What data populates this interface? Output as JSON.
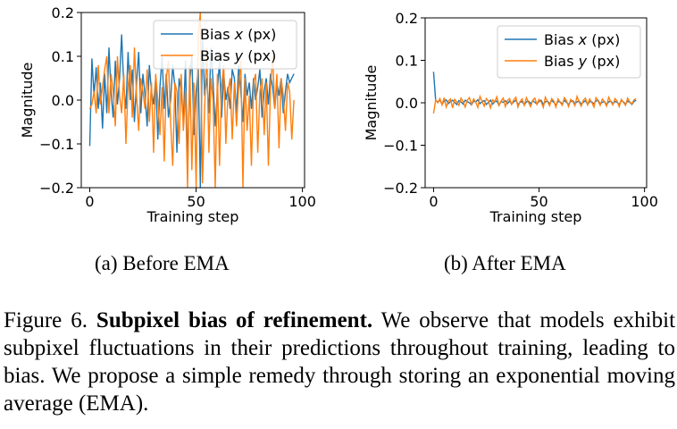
{
  "chart_data": [
    {
      "type": "line",
      "title": "",
      "xlabel": "Training step",
      "ylabel": "Magnitude",
      "xlim": [
        -4,
        101
      ],
      "ylim": [
        -0.2,
        0.2
      ],
      "xticks": [
        0,
        50,
        100
      ],
      "yticks": [
        -0.2,
        -0.1,
        0.0,
        0.1,
        0.2
      ],
      "ytick_labels": [
        "−0.2",
        "−0.1",
        "0.0",
        "0.1",
        "0.2"
      ],
      "legend_position": "upper-right",
      "series": [
        {
          "name": "Bias x (px)",
          "color": "#1f77b4",
          "x": [
            0,
            1,
            2,
            3,
            4,
            5,
            6,
            7,
            8,
            9,
            10,
            11,
            12,
            13,
            14,
            15,
            16,
            17,
            18,
            19,
            20,
            21,
            22,
            23,
            24,
            25,
            26,
            27,
            28,
            29,
            30,
            31,
            32,
            33,
            34,
            35,
            36,
            37,
            38,
            39,
            40,
            41,
            42,
            43,
            44,
            45,
            46,
            47,
            48,
            49,
            50,
            51,
            52,
            53,
            54,
            55,
            56,
            57,
            58,
            59,
            60,
            61,
            62,
            63,
            64,
            65,
            66,
            67,
            68,
            69,
            70,
            71,
            72,
            73,
            74,
            75,
            76,
            77,
            78,
            79,
            80,
            81,
            82,
            83,
            84,
            85,
            86,
            87,
            88,
            89,
            90,
            91,
            92,
            93,
            94,
            95,
            96
          ],
          "y": [
            -0.105,
            0.095,
            0.01,
            0.075,
            -0.02,
            0.04,
            -0.065,
            0.06,
            -0.03,
            0.12,
            0.02,
            -0.04,
            0.09,
            -0.01,
            0.05,
            0.15,
            0.03,
            -0.02,
            0.11,
            0.0,
            0.07,
            -0.05,
            0.04,
            0.11,
            -0.03,
            0.06,
            0.01,
            -0.06,
            0.08,
            0.02,
            -0.01,
            0.05,
            -0.09,
            0.03,
            0.1,
            -0.02,
            0.06,
            -0.04,
            0.0,
            0.08,
            0.03,
            -0.12,
            0.05,
            0.02,
            -0.05,
            0.09,
            -0.15,
            0.04,
            0.1,
            -0.08,
            0.02,
            0.07,
            -0.2,
            0.15,
            0.01,
            0.05,
            -0.03,
            0.12,
            0.04,
            -0.06,
            0.02,
            0.09,
            -0.04,
            0.06,
            0.0,
            0.03,
            -0.02,
            0.07,
            0.05,
            -0.03,
            0.08,
            0.02,
            -0.05,
            0.06,
            0.01,
            0.04,
            -0.02,
            0.05,
            0.0,
            0.03,
            0.07,
            -0.04,
            0.02,
            0.05,
            -0.01,
            0.06,
            0.03,
            -0.02,
            0.04,
            0.01,
            0.05,
            -0.03,
            0.02,
            0.06,
            0.04,
            0.05,
            0.06
          ]
        },
        {
          "name": "Bias y (px)",
          "color": "#ff7f0e",
          "x": [
            0,
            1,
            2,
            3,
            4,
            5,
            6,
            7,
            8,
            9,
            10,
            11,
            12,
            13,
            14,
            15,
            16,
            17,
            18,
            19,
            20,
            21,
            22,
            23,
            24,
            25,
            26,
            27,
            28,
            29,
            30,
            31,
            32,
            33,
            34,
            35,
            36,
            37,
            38,
            39,
            40,
            41,
            42,
            43,
            44,
            45,
            46,
            47,
            48,
            49,
            50,
            51,
            52,
            53,
            54,
            55,
            56,
            57,
            58,
            59,
            60,
            61,
            62,
            63,
            64,
            65,
            66,
            67,
            68,
            69,
            70,
            71,
            72,
            73,
            74,
            75,
            76,
            77,
            78,
            79,
            80,
            81,
            82,
            83,
            84,
            85,
            86,
            87,
            88,
            89,
            90,
            91,
            92,
            93,
            94,
            95,
            96
          ],
          "y": [
            -0.02,
            -0.01,
            0.02,
            -0.03,
            0.08,
            -0.01,
            0.03,
            0.07,
            0.1,
            -0.03,
            0.06,
            0.02,
            -0.06,
            0.1,
            0.01,
            -0.03,
            0.06,
            -0.1,
            0.03,
            0.08,
            -0.04,
            0.12,
            0.01,
            -0.07,
            0.05,
            0.02,
            -0.02,
            0.07,
            -0.05,
            0.04,
            -0.12,
            0.06,
            0.0,
            -0.08,
            0.03,
            -0.14,
            0.05,
            0.09,
            -0.05,
            -0.15,
            0.04,
            0.02,
            -0.1,
            0.06,
            -0.07,
            0.02,
            -0.2,
            0.08,
            -0.16,
            0.04,
            -0.2,
            0.15,
            0.2,
            -0.19,
            -0.02,
            0.12,
            -0.12,
            0.05,
            0.0,
            -0.2,
            0.06,
            -0.15,
            0.03,
            0.08,
            -0.1,
            0.02,
            0.05,
            -0.09,
            0.04,
            -0.06,
            0.03,
            0.09,
            -0.2,
            0.05,
            -0.07,
            0.01,
            -0.15,
            0.04,
            0.06,
            -0.12,
            0.02,
            0.05,
            -0.08,
            0.04,
            -0.15,
            0.03,
            0.1,
            -0.02,
            0.06,
            -0.11,
            0.05,
            0.01,
            -0.07,
            0.04,
            0.02,
            -0.09,
            0.0
          ]
        }
      ]
    },
    {
      "type": "line",
      "title": "",
      "xlabel": "Training step",
      "ylabel": "Magnitude",
      "xlim": [
        -4,
        101
      ],
      "ylim": [
        -0.2,
        0.2
      ],
      "xticks": [
        0,
        50,
        100
      ],
      "yticks": [
        -0.2,
        -0.1,
        0.0,
        0.1,
        0.2
      ],
      "ytick_labels": [
        "−0.2",
        "−0.1",
        "0.0",
        "0.1",
        "0.2"
      ],
      "legend_position": "upper-right",
      "series": [
        {
          "name": "Bias x (px)",
          "color": "#1f77b4",
          "x": [
            0,
            1,
            2,
            3,
            4,
            5,
            6,
            7,
            8,
            9,
            10,
            11,
            12,
            13,
            14,
            15,
            16,
            17,
            18,
            19,
            20,
            21,
            22,
            23,
            24,
            25,
            26,
            27,
            28,
            29,
            30,
            31,
            32,
            33,
            34,
            35,
            36,
            37,
            38,
            39,
            40,
            41,
            42,
            43,
            44,
            45,
            46,
            47,
            48,
            49,
            50,
            51,
            52,
            53,
            54,
            55,
            56,
            57,
            58,
            59,
            60,
            61,
            62,
            63,
            64,
            65,
            66,
            67,
            68,
            69,
            70,
            71,
            72,
            73,
            74,
            75,
            76,
            77,
            78,
            79,
            80,
            81,
            82,
            83,
            84,
            85,
            86,
            87,
            88,
            89,
            90,
            91,
            92,
            93,
            94,
            95,
            96
          ],
          "y": [
            0.073,
            0.005,
            0.002,
            0.006,
            -0.003,
            0.004,
            0.007,
            -0.002,
            0.003,
            0.006,
            0.001,
            -0.004,
            0.005,
            0.002,
            -0.003,
            0.006,
            0.003,
            0.0,
            -0.005,
            0.004,
            0.002,
            0.007,
            -0.002,
            0.003,
            0.005,
            -0.004,
            0.001,
            0.006,
            -0.003,
            0.002,
            0.004,
            -0.006,
            0.003,
            0.001,
            0.005,
            -0.002,
            0.004,
            -0.003,
            0.002,
            0.006,
            -0.004,
            0.001,
            0.003,
            -0.005,
            0.002,
            0.004,
            -0.002,
            0.005,
            0.001,
            -0.003,
            0.003,
            0.006,
            -0.004,
            0.002,
            0.004,
            -0.002,
            0.005,
            0.001,
            -0.005,
            0.003,
            0.002,
            -0.003,
            0.006,
            0.001,
            -0.004,
            0.003,
            0.005,
            -0.002,
            0.002,
            0.004,
            -0.003,
            0.001,
            0.005,
            -0.004,
            0.003,
            0.002,
            -0.002,
            0.004,
            0.006,
            -0.003,
            0.001,
            0.003,
            -0.005,
            0.002,
            0.004,
            -0.002,
            0.003,
            0.001,
            -0.004,
            0.005,
            0.002,
            -0.003,
            0.004,
            0.001,
            -0.004,
            0.003,
            0.006
          ]
        },
        {
          "name": "Bias y (px)",
          "color": "#ff7f0e",
          "x": [
            0,
            1,
            2,
            3,
            4,
            5,
            6,
            7,
            8,
            9,
            10,
            11,
            12,
            13,
            14,
            15,
            16,
            17,
            18,
            19,
            20,
            21,
            22,
            23,
            24,
            25,
            26,
            27,
            28,
            29,
            30,
            31,
            32,
            33,
            34,
            35,
            36,
            37,
            38,
            39,
            40,
            41,
            42,
            43,
            44,
            45,
            46,
            47,
            48,
            49,
            50,
            51,
            52,
            53,
            54,
            55,
            56,
            57,
            58,
            59,
            60,
            61,
            62,
            63,
            64,
            65,
            66,
            67,
            68,
            69,
            70,
            71,
            72,
            73,
            74,
            75,
            76,
            77,
            78,
            79,
            80,
            81,
            82,
            83,
            84,
            85,
            86,
            87,
            88,
            89,
            90,
            91,
            92,
            93,
            94,
            95,
            96
          ],
          "y": [
            -0.025,
            0.006,
            0.0,
            0.01,
            -0.005,
            0.012,
            -0.01,
            0.004,
            0.009,
            -0.012,
            0.008,
            0.002,
            -0.006,
            0.011,
            0.003,
            -0.01,
            0.006,
            0.012,
            -0.004,
            0.009,
            0.001,
            -0.011,
            0.015,
            0.003,
            -0.008,
            0.01,
            0.004,
            -0.012,
            0.007,
            0.002,
            0.014,
            -0.006,
            0.004,
            0.011,
            -0.009,
            0.005,
            0.01,
            -0.004,
            0.007,
            0.013,
            -0.01,
            0.003,
            0.009,
            -0.006,
            0.012,
            0.001,
            -0.009,
            0.006,
            0.011,
            -0.004,
            0.008,
            0.002,
            -0.011,
            0.013,
            0.003,
            -0.007,
            0.01,
            0.004,
            -0.01,
            0.009,
            0.001,
            -0.006,
            0.012,
            0.005,
            -0.009,
            0.008,
            0.003,
            -0.007,
            0.015,
            0.002,
            -0.008,
            0.006,
            0.011,
            -0.005,
            0.009,
            0.001,
            -0.01,
            0.012,
            0.004,
            -0.006,
            0.009,
            0.002,
            -0.008,
            0.013,
            0.003,
            -0.005,
            0.01,
            0.004,
            -0.009,
            0.008,
            0.001,
            -0.006,
            0.011,
            0.002,
            -0.003,
            0.007,
            0.01
          ]
        }
      ]
    }
  ],
  "subcaptions": [
    "(a) Before EMA",
    "(b) After EMA"
  ],
  "figure_caption": {
    "label": "Figure 6.",
    "title": "Subpixel bias of refinement.",
    "text": "We observe that models exhibit subpixel fluctuations in their predictions throughout training, leading to bias. We propose a simple remedy through storing an exponential moving average (EMA)."
  }
}
